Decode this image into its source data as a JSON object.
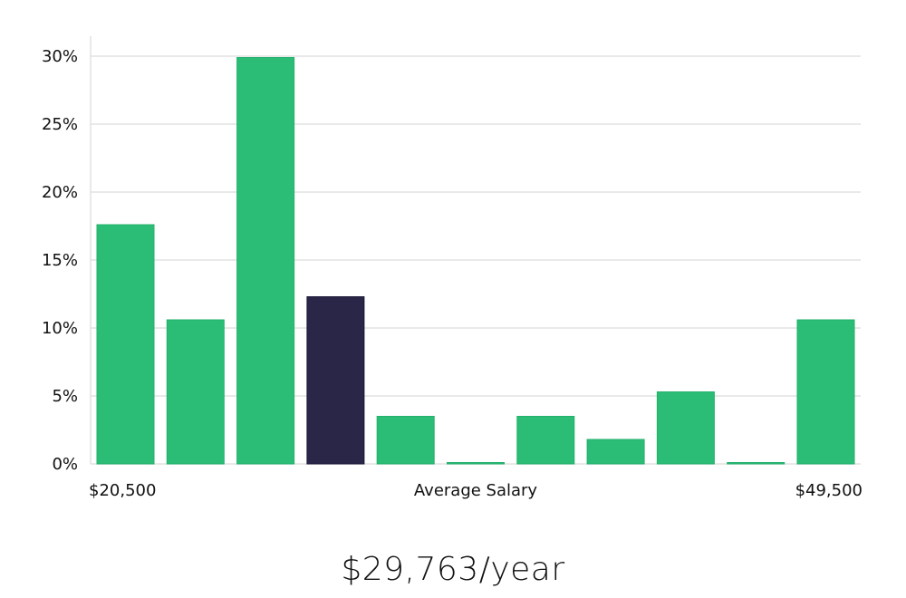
{
  "chart_data": {
    "type": "bar",
    "title": "",
    "xlabel": "Average Salary",
    "ylabel": "",
    "x_min_label": "$20,500",
    "x_max_label": "$49,500",
    "y_ticks": [
      "0%",
      "5%",
      "10%",
      "15%",
      "20%",
      "25%",
      "30%"
    ],
    "ylim": [
      0,
      31.5
    ],
    "values": [
      17.6,
      10.6,
      29.9,
      12.3,
      3.5,
      0.0,
      3.5,
      1.8,
      5.3,
      0.0,
      10.6
    ],
    "highlight_index": 3,
    "colors": {
      "bar": "#2bbd76",
      "highlight": "#2a2647",
      "grid": "#e2e2e2"
    }
  },
  "summary": {
    "salary_text": "$29,763/year"
  }
}
